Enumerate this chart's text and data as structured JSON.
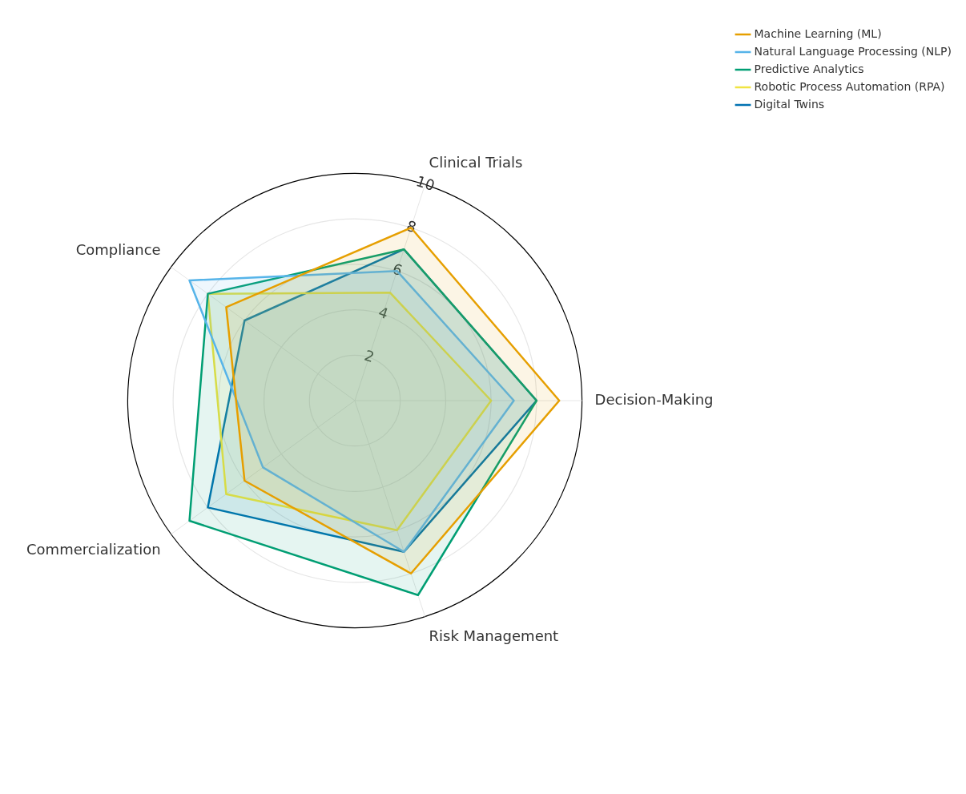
{
  "chart_data": {
    "type": "radar",
    "categories": [
      "Clinical Trials",
      "Decision-Making",
      "Risk Management",
      "Commercialization",
      "Compliance"
    ],
    "ylim": [
      0,
      10
    ],
    "yticks": [
      2,
      4,
      6,
      8,
      10
    ],
    "grid": true,
    "legend": "top right",
    "marker": "none",
    "series": [
      {
        "name": "Machine Learning (ML)",
        "color": "#e69f00",
        "values": [
          8,
          9,
          8,
          6,
          7
        ]
      },
      {
        "name": "Natural Language Processing (NLP)",
        "color": "#56b4e9",
        "values": [
          6,
          7,
          7,
          5,
          9
        ]
      },
      {
        "name": "Predictive Analytics",
        "color": "#009e73",
        "values": [
          7,
          8,
          9,
          9,
          8
        ]
      },
      {
        "name": "Robotic Process Automation (RPA)",
        "color": "#f0e442",
        "values": [
          5,
          6,
          6,
          7,
          8
        ]
      },
      {
        "name": "Digital Twins",
        "color": "#0072b2",
        "values": [
          7,
          8,
          7,
          8,
          6
        ]
      }
    ]
  }
}
